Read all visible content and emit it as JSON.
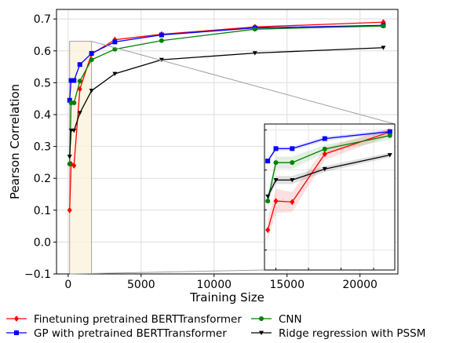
{
  "chart_data": {
    "type": "line",
    "title": "",
    "xlabel": "Training Size",
    "ylabel": "Pearson Correlation",
    "xlim": [
      -800,
      22600
    ],
    "ylim": [
      -0.1,
      0.73
    ],
    "xticks": [
      0,
      5000,
      10000,
      15000,
      20000
    ],
    "xtick_labels": [
      "0",
      "5000",
      "10000",
      "15000",
      "20000"
    ],
    "yticks": [
      -0.1,
      0.0,
      0.1,
      0.2,
      0.3,
      0.4,
      0.5,
      0.6,
      0.7
    ],
    "ytick_labels": [
      "−0.1",
      "0.0",
      "0.1",
      "0.2",
      "0.3",
      "0.4",
      "0.5",
      "0.6",
      "0.7"
    ],
    "grid": true,
    "legend_position": "bottom-outside",
    "x": [
      100,
      200,
      400,
      800,
      1600,
      3200,
      6400,
      12800,
      21600
    ],
    "series": [
      {
        "name": "Finetuning pretrained BERTTransformer",
        "color": "#ff0000",
        "marker": "diamond",
        "values": [
          0.1,
          0.245,
          0.24,
          0.48,
          0.59,
          0.635,
          0.652,
          0.675,
          0.69
        ],
        "band": [
          0.05,
          0.06,
          0.05,
          0.03,
          0.02,
          0.015,
          0.01,
          0.01,
          0.01
        ]
      },
      {
        "name": "GP with pretrained BERTTransformer",
        "color": "#0000ff",
        "marker": "square",
        "values": [
          0.445,
          0.507,
          0.507,
          0.557,
          0.592,
          0.628,
          0.65,
          0.672,
          0.68
        ],
        "band": [
          0.01,
          0.01,
          0.01,
          0.01,
          0.01,
          0.008,
          0.006,
          0.006,
          0.005
        ]
      },
      {
        "name": "CNN",
        "color": "#008000",
        "marker": "circle",
        "values": [
          0.245,
          0.437,
          0.437,
          0.505,
          0.572,
          0.605,
          0.632,
          0.668,
          0.678
        ],
        "band": [
          0.03,
          0.03,
          0.03,
          0.02,
          0.02,
          0.015,
          0.01,
          0.008,
          0.008
        ]
      },
      {
        "name": "Ridge regression with PSSM",
        "color": "#000000",
        "marker": "triangle-down",
        "values": [
          0.268,
          0.35,
          0.35,
          0.405,
          0.475,
          0.528,
          0.572,
          0.593,
          0.61
        ],
        "band": [
          0.02,
          0.02,
          0.02,
          0.015,
          0.012,
          0.01,
          0.008,
          0.006,
          0.005
        ]
      }
    ],
    "zoom_region": {
      "x": [
        100,
        1600
      ],
      "y": [
        -0.1,
        0.63
      ]
    },
    "inset": {
      "x": [
        100,
        200,
        400,
        800,
        1600
      ],
      "xlim": [
        60,
        1660
      ],
      "ylim": [
        -0.1,
        0.63
      ]
    }
  }
}
